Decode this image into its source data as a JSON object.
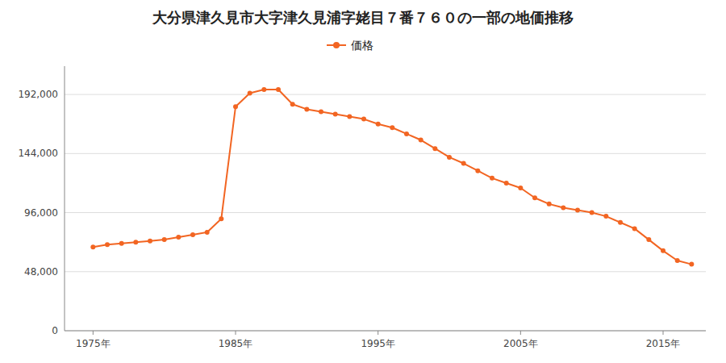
{
  "chart_data": {
    "type": "line",
    "title": "大分県津久見市大字津久見浦字姥目７番７６０の一部の地価推移",
    "x": [
      1975,
      1976,
      1977,
      1978,
      1979,
      1980,
      1981,
      1982,
      1983,
      1984,
      1985,
      1986,
      1987,
      1988,
      1989,
      1990,
      1991,
      1992,
      1993,
      1994,
      1995,
      1996,
      1997,
      1998,
      1999,
      2000,
      2001,
      2002,
      2003,
      2004,
      2005,
      2006,
      2007,
      2008,
      2009,
      2010,
      2011,
      2012,
      2013,
      2014,
      2015,
      2016,
      2017
    ],
    "series": [
      {
        "name": "価格",
        "color": "#F26522",
        "marker": "circle",
        "line_style": "solid",
        "values": [
          68000,
          70000,
          71000,
          72000,
          73000,
          74000,
          76000,
          78000,
          80000,
          91000,
          182000,
          193000,
          196000,
          196000,
          184000,
          180000,
          178000,
          176000,
          174000,
          172000,
          168000,
          165000,
          160000,
          155000,
          148000,
          141000,
          136000,
          130000,
          124000,
          120000,
          116000,
          108000,
          103000,
          100000,
          98000,
          96000,
          93000,
          88000,
          83000,
          74000,
          65000,
          57000,
          54000
        ]
      }
    ],
    "xlim": [
      1973,
      2018
    ],
    "xticks": [
      {
        "value": 1975,
        "label": "1975年"
      },
      {
        "value": 1985,
        "label": "1985年"
      },
      {
        "value": 1995,
        "label": "1995年"
      },
      {
        "value": 2005,
        "label": "2005年"
      },
      {
        "value": 2015,
        "label": "2015年"
      }
    ],
    "ylim": [
      0,
      215000
    ],
    "yticks": [
      0,
      {
        "value": 48000,
        "label": "48,000"
      },
      {
        "value": 96000,
        "label": "96,000"
      },
      {
        "value": 144000,
        "label": "144,000"
      },
      {
        "value": 192000,
        "label": "192,000"
      }
    ],
    "grid": true,
    "legend": "top"
  }
}
